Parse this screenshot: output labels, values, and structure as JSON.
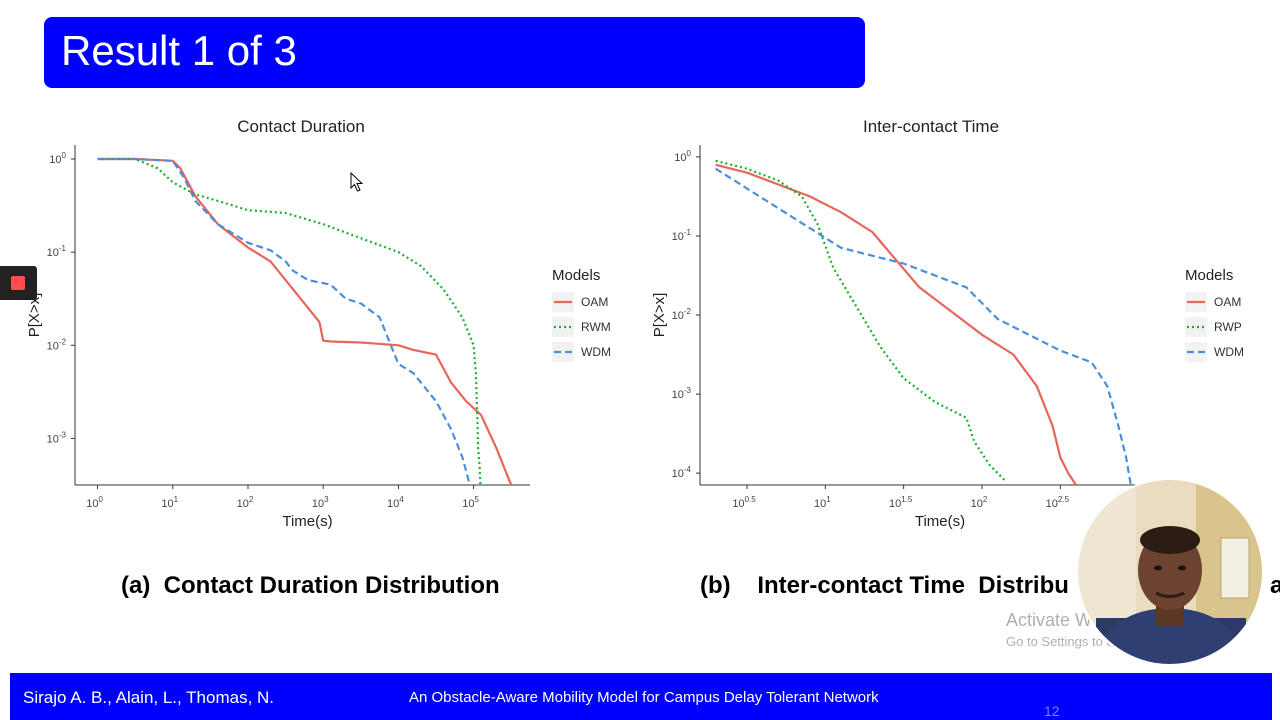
{
  "slide": {
    "title": "Result 1 of 3",
    "caption_a": "(a)  Contact Duration Distribution",
    "caption_b": "(b)    Inter-contact Time  Distribu",
    "caption_b_tail": "a"
  },
  "footer": {
    "authors": "Sirajo A. B., Alain, L., Thomas, N.",
    "talk_title": "An Obstacle-Aware Mobility Model for Campus Delay Tolerant Network",
    "page_number": "12"
  },
  "watermark": {
    "line1": "Activate Windows",
    "line2": "Go to Settings to activate Windows."
  },
  "colors": {
    "banner": "#0000ff",
    "footer": "#0000ff",
    "OAM": "#e8655a",
    "green": "#18b02c",
    "WDM": "#4a8fdb"
  },
  "icons": {
    "record": "record-stop-icon",
    "cursor": "mouse-cursor-icon"
  },
  "chart_data": [
    {
      "type": "line",
      "title": "Contact Duration",
      "xlabel": "Time(s)",
      "ylabel": "P[X>x]",
      "x_scale": "log10",
      "y_scale": "log10",
      "x_ticks": [
        0,
        1,
        2,
        3,
        4,
        5
      ],
      "y_ticks": [
        0,
        -1,
        -2,
        -3
      ],
      "xlim_log10": [
        -0.3,
        5.75
      ],
      "ylim_log10": [
        -3.5,
        0.15
      ],
      "legend_title": "Models",
      "legend_position": "right",
      "series": [
        {
          "name": "OAM",
          "style": "solid",
          "log10_x": [
            0,
            0.5,
            1.0,
            1.1,
            1.3,
            1.6,
            2.0,
            2.3,
            2.5,
            2.7,
            2.95,
            3.0,
            3.1,
            3.5,
            4.0,
            4.2,
            4.5,
            4.7,
            4.9,
            5.1,
            5.3,
            5.5
          ],
          "log10_y": [
            0,
            0,
            -0.02,
            -0.1,
            -0.4,
            -0.7,
            -0.95,
            -1.1,
            -1.3,
            -1.5,
            -1.75,
            -1.95,
            -1.96,
            -1.97,
            -2.0,
            -2.05,
            -2.1,
            -2.4,
            -2.6,
            -2.75,
            -3.1,
            -3.5
          ]
        },
        {
          "name": "RWM",
          "style": "dotted",
          "log10_x": [
            0,
            0.5,
            0.8,
            1.0,
            1.3,
            1.6,
            2.0,
            2.5,
            3.0,
            3.5,
            4.0,
            4.3,
            4.6,
            4.85,
            5.0,
            5.03,
            5.05,
            5.06,
            5.08,
            5.09
          ],
          "log10_y": [
            0,
            0,
            -0.1,
            -0.25,
            -0.38,
            -0.45,
            -0.55,
            -0.58,
            -0.7,
            -0.85,
            -1.0,
            -1.15,
            -1.4,
            -1.7,
            -2.0,
            -2.3,
            -2.8,
            -3.1,
            -3.3,
            -3.5
          ]
        },
        {
          "name": "WDM",
          "style": "dashed",
          "log10_x": [
            0,
            0.5,
            1.0,
            1.15,
            1.3,
            1.6,
            2.0,
            2.3,
            2.5,
            2.6,
            2.8,
            3.1,
            3.3,
            3.5,
            3.75,
            4.0,
            4.2,
            4.5,
            4.7,
            4.8,
            4.85,
            4.9,
            4.95
          ],
          "log10_y": [
            0,
            0,
            -0.02,
            -0.2,
            -0.45,
            -0.7,
            -0.9,
            -0.98,
            -1.1,
            -1.2,
            -1.3,
            -1.35,
            -1.5,
            -1.55,
            -1.7,
            -2.2,
            -2.3,
            -2.6,
            -2.9,
            -3.1,
            -3.2,
            -3.35,
            -3.5
          ]
        }
      ]
    },
    {
      "type": "line",
      "title": "Inter-contact Time",
      "xlabel": "Time(s)",
      "ylabel": "P[X>x]",
      "x_scale": "log10",
      "y_scale": "log10",
      "x_ticks": [
        0.5,
        1,
        1.5,
        2,
        2.5
      ],
      "y_ticks": [
        0,
        -1,
        -2,
        -3,
        -4
      ],
      "xlim_log10": [
        0.2,
        3.2
      ],
      "ylim_log10": [
        -4.15,
        0.15
      ],
      "legend_title": "Models",
      "legend_position": "right",
      "series": [
        {
          "name": "OAM",
          "style": "solid",
          "log10_x": [
            0.3,
            0.5,
            0.7,
            0.9,
            1.1,
            1.3,
            1.45,
            1.6,
            1.8,
            2.0,
            2.2,
            2.35,
            2.45,
            2.5,
            2.55,
            2.6
          ],
          "log10_y": [
            -0.1,
            -0.2,
            -0.35,
            -0.5,
            -0.7,
            -0.95,
            -1.3,
            -1.65,
            -1.95,
            -2.25,
            -2.5,
            -2.9,
            -3.4,
            -3.8,
            -4.0,
            -4.15
          ]
        },
        {
          "name": "RWP",
          "style": "dotted",
          "log10_x": [
            0.3,
            0.5,
            0.7,
            0.85,
            0.95,
            1.05,
            1.2,
            1.35,
            1.5,
            1.7,
            1.9,
            1.95,
            2.05,
            2.15
          ],
          "log10_y": [
            -0.05,
            -0.15,
            -0.3,
            -0.5,
            -0.85,
            -1.4,
            -1.9,
            -2.4,
            -2.8,
            -3.1,
            -3.3,
            -3.6,
            -3.9,
            -4.1
          ]
        },
        {
          "name": "WDM",
          "style": "dashed",
          "log10_x": [
            0.3,
            0.5,
            0.7,
            0.9,
            1.1,
            1.3,
            1.5,
            1.7,
            1.9,
            2.1,
            2.3,
            2.5,
            2.7,
            2.8,
            2.87,
            2.92,
            2.95
          ],
          "log10_y": [
            -0.15,
            -0.4,
            -0.65,
            -0.9,
            -1.15,
            -1.25,
            -1.35,
            -1.5,
            -1.65,
            -2.05,
            -2.25,
            -2.45,
            -2.6,
            -2.9,
            -3.4,
            -3.8,
            -4.15
          ]
        }
      ]
    }
  ]
}
